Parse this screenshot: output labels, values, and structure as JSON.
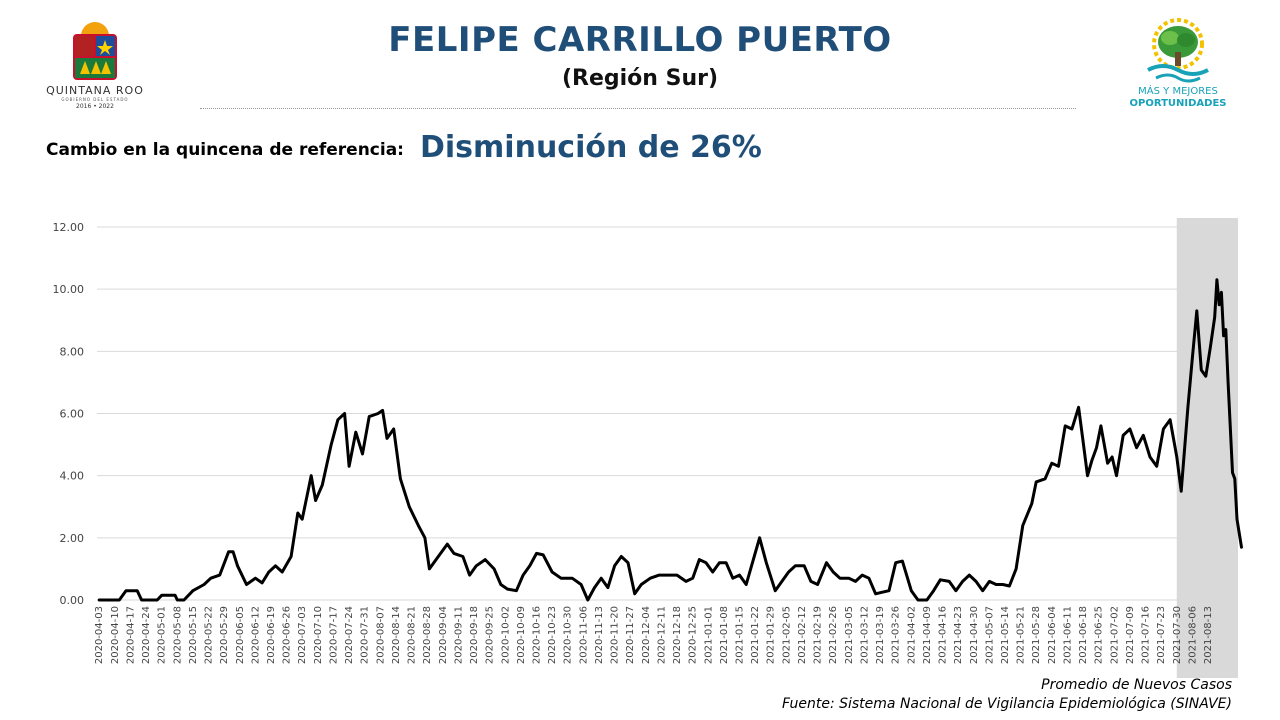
{
  "header": {
    "title": "FELIPE CARRILLO PUERTO",
    "subtitle": "(Región Sur)",
    "change_label": "Cambio en la quincena de referencia:",
    "change_value": "Disminución de 26%"
  },
  "logo_left": {
    "line1": "QUINTANA ROO",
    "line2": "GOBIERNO DEL ESTADO",
    "line3": "2016 • 2022"
  },
  "logo_right": {
    "line1": "MÁS Y MEJORES",
    "line2": "OPORTUNIDADES"
  },
  "footer": {
    "line1": "Promedio de Nuevos Casos",
    "line2": "Fuente: Sistema Nacional de Vigilancia Epidemiológica (SINAVE)"
  },
  "colors": {
    "title": "#1f4e79",
    "line": "#000000",
    "shade": "#d9d9d9",
    "grid": "#d9d9d9"
  },
  "chart_data": {
    "type": "line",
    "start_date": "2020-04-03",
    "ylim": [
      0,
      12
    ],
    "yticks": [
      "0.00",
      "2.00",
      "4.00",
      "6.00",
      "8.00",
      "10.00",
      "12.00"
    ],
    "x_tick_labels": [
      "2020-04-03",
      "2020-04-10",
      "2020-04-17",
      "2020-04-24",
      "2020-05-01",
      "2020-05-08",
      "2020-05-15",
      "2020-05-22",
      "2020-05-29",
      "2020-06-05",
      "2020-06-12",
      "2020-06-19",
      "2020-06-26",
      "2020-07-03",
      "2020-07-10",
      "2020-07-17",
      "2020-07-24",
      "2020-07-31",
      "2020-08-07",
      "2020-08-14",
      "2020-08-21",
      "2020-08-28",
      "2020-09-04",
      "2020-09-11",
      "2020-09-18",
      "2020-09-25",
      "2020-10-02",
      "2020-10-09",
      "2020-10-16",
      "2020-10-23",
      "2020-10-30",
      "2020-11-06",
      "2020-11-13",
      "2020-11-20",
      "2020-11-27",
      "2020-12-04",
      "2020-12-11",
      "2020-12-18",
      "2020-12-25",
      "2021-01-01",
      "2021-01-08",
      "2021-01-15",
      "2021-01-22",
      "2021-01-29",
      "2021-02-05",
      "2021-02-12",
      "2021-02-19",
      "2021-02-26",
      "2021-03-05",
      "2021-03-12",
      "2021-03-19",
      "2021-03-26",
      "2021-04-02",
      "2021-04-09",
      "2021-04-16",
      "2021-04-23",
      "2021-04-30",
      "2021-05-07",
      "2021-05-14",
      "2021-05-21",
      "2021-05-28",
      "2021-06-04",
      "2021-06-11",
      "2021-06-18",
      "2021-06-25",
      "2021-07-02",
      "2021-07-09",
      "2021-07-16",
      "2021-07-23",
      "2021-07-30",
      "2021-08-06",
      "2021-08-13"
    ],
    "shaded_range": [
      "2021-07-30",
      "2021-08-19"
    ],
    "series": [
      {
        "name": "",
        "points": [
          [
            "2020-04-03",
            0
          ],
          [
            "2020-04-12",
            0
          ],
          [
            "2020-04-15",
            0.3
          ],
          [
            "2020-04-20",
            0.3
          ],
          [
            "2020-04-22",
            0
          ],
          [
            "2020-04-29",
            0
          ],
          [
            "2020-05-01",
            0.15
          ],
          [
            "2020-05-07",
            0.15
          ],
          [
            "2020-05-08",
            0
          ],
          [
            "2020-05-11",
            0
          ],
          [
            "2020-05-15",
            0.3
          ],
          [
            "2020-05-20",
            0.5
          ],
          [
            "2020-05-23",
            0.7
          ],
          [
            "2020-05-27",
            0.8
          ],
          [
            "2020-05-31",
            1.55
          ],
          [
            "2020-06-02",
            1.55
          ],
          [
            "2020-06-04",
            1.1
          ],
          [
            "2020-06-08",
            0.5
          ],
          [
            "2020-06-12",
            0.7
          ],
          [
            "2020-06-15",
            0.55
          ],
          [
            "2020-06-18",
            0.9
          ],
          [
            "2020-06-21",
            1.1
          ],
          [
            "2020-06-24",
            0.9
          ],
          [
            "2020-06-28",
            1.4
          ],
          [
            "2020-07-01",
            2.8
          ],
          [
            "2020-07-03",
            2.6
          ],
          [
            "2020-07-07",
            4.0
          ],
          [
            "2020-07-09",
            3.2
          ],
          [
            "2020-07-12",
            3.7
          ],
          [
            "2020-07-16",
            5.0
          ],
          [
            "2020-07-19",
            5.8
          ],
          [
            "2020-07-22",
            6.0
          ],
          [
            "2020-07-24",
            4.3
          ],
          [
            "2020-07-27",
            5.4
          ],
          [
            "2020-07-30",
            4.7
          ],
          [
            "2020-08-02",
            5.9
          ],
          [
            "2020-08-06",
            6.0
          ],
          [
            "2020-08-08",
            6.1
          ],
          [
            "2020-08-10",
            5.2
          ],
          [
            "2020-08-13",
            5.5
          ],
          [
            "2020-08-16",
            3.9
          ],
          [
            "2020-08-20",
            3.0
          ],
          [
            "2020-08-24",
            2.4
          ],
          [
            "2020-08-27",
            2.0
          ],
          [
            "2020-08-29",
            1.0
          ],
          [
            "2020-09-02",
            1.4
          ],
          [
            "2020-09-06",
            1.8
          ],
          [
            "2020-09-09",
            1.5
          ],
          [
            "2020-09-13",
            1.4
          ],
          [
            "2020-09-16",
            0.8
          ],
          [
            "2020-09-19",
            1.1
          ],
          [
            "2020-09-23",
            1.3
          ],
          [
            "2020-09-27",
            1.0
          ],
          [
            "2020-09-30",
            0.5
          ],
          [
            "2020-10-03",
            0.35
          ],
          [
            "2020-10-07",
            0.3
          ],
          [
            "2020-10-10",
            0.8
          ],
          [
            "2020-10-13",
            1.1
          ],
          [
            "2020-10-16",
            1.5
          ],
          [
            "2020-10-19",
            1.45
          ],
          [
            "2020-10-23",
            0.9
          ],
          [
            "2020-10-27",
            0.7
          ],
          [
            "2020-11-01",
            0.7
          ],
          [
            "2020-11-05",
            0.5
          ],
          [
            "2020-11-08",
            0
          ],
          [
            "2020-11-11",
            0.4
          ],
          [
            "2020-11-14",
            0.7
          ],
          [
            "2020-11-17",
            0.4
          ],
          [
            "2020-11-20",
            1.1
          ],
          [
            "2020-11-23",
            1.4
          ],
          [
            "2020-11-26",
            1.2
          ],
          [
            "2020-11-29",
            0.2
          ],
          [
            "2020-12-02",
            0.5
          ],
          [
            "2020-12-06",
            0.7
          ],
          [
            "2020-12-10",
            0.8
          ],
          [
            "2020-12-14",
            0.8
          ],
          [
            "2020-12-18",
            0.8
          ],
          [
            "2020-12-22",
            0.6
          ],
          [
            "2020-12-25",
            0.7
          ],
          [
            "2020-12-28",
            1.3
          ],
          [
            "2020-12-31",
            1.2
          ],
          [
            "2021-01-03",
            0.9
          ],
          [
            "2021-01-06",
            1.2
          ],
          [
            "2021-01-09",
            1.2
          ],
          [
            "2021-01-12",
            0.7
          ],
          [
            "2021-01-15",
            0.8
          ],
          [
            "2021-01-18",
            0.5
          ],
          [
            "2021-01-22",
            1.5
          ],
          [
            "2021-01-24",
            2.0
          ],
          [
            "2021-01-27",
            1.2
          ],
          [
            "2021-01-31",
            0.3
          ],
          [
            "2021-02-03",
            0.6
          ],
          [
            "2021-02-06",
            0.9
          ],
          [
            "2021-02-09",
            1.1
          ],
          [
            "2021-02-13",
            1.1
          ],
          [
            "2021-02-16",
            0.6
          ],
          [
            "2021-02-19",
            0.5
          ],
          [
            "2021-02-23",
            1.2
          ],
          [
            "2021-02-26",
            0.9
          ],
          [
            "2021-03-01",
            0.7
          ],
          [
            "2021-03-05",
            0.7
          ],
          [
            "2021-03-08",
            0.6
          ],
          [
            "2021-03-11",
            0.8
          ],
          [
            "2021-03-14",
            0.7
          ],
          [
            "2021-03-17",
            0.2
          ],
          [
            "2021-03-20",
            0.25
          ],
          [
            "2021-03-23",
            0.3
          ],
          [
            "2021-03-26",
            1.2
          ],
          [
            "2021-03-29",
            1.25
          ],
          [
            "2021-04-02",
            0.3
          ],
          [
            "2021-04-05",
            0
          ],
          [
            "2021-04-09",
            0
          ],
          [
            "2021-04-12",
            0.3
          ],
          [
            "2021-04-15",
            0.65
          ],
          [
            "2021-04-19",
            0.6
          ],
          [
            "2021-04-22",
            0.3
          ],
          [
            "2021-04-25",
            0.6
          ],
          [
            "2021-04-28",
            0.8
          ],
          [
            "2021-05-01",
            0.6
          ],
          [
            "2021-05-04",
            0.3
          ],
          [
            "2021-05-07",
            0.6
          ],
          [
            "2021-05-10",
            0.5
          ],
          [
            "2021-05-13",
            0.5
          ],
          [
            "2021-05-16",
            0.45
          ],
          [
            "2021-05-19",
            1.0
          ],
          [
            "2021-05-22",
            2.4
          ],
          [
            "2021-05-26",
            3.1
          ],
          [
            "2021-05-28",
            3.8
          ],
          [
            "2021-06-01",
            3.9
          ],
          [
            "2021-06-04",
            4.4
          ],
          [
            "2021-06-07",
            4.3
          ],
          [
            "2021-06-10",
            5.6
          ],
          [
            "2021-06-13",
            5.5
          ],
          [
            "2021-06-16",
            6.2
          ],
          [
            "2021-06-18",
            5.1
          ],
          [
            "2021-06-20",
            4.0
          ],
          [
            "2021-06-22",
            4.5
          ],
          [
            "2021-06-24",
            4.9
          ],
          [
            "2021-06-26",
            5.6
          ],
          [
            "2021-06-29",
            4.4
          ],
          [
            "2021-07-01",
            4.6
          ],
          [
            "2021-07-03",
            4.0
          ],
          [
            "2021-07-06",
            5.3
          ],
          [
            "2021-07-09",
            5.5
          ],
          [
            "2021-07-12",
            4.9
          ],
          [
            "2021-07-15",
            5.3
          ],
          [
            "2021-07-18",
            4.6
          ],
          [
            "2021-07-21",
            4.3
          ],
          [
            "2021-07-24",
            5.5
          ],
          [
            "2021-07-27",
            5.8
          ],
          [
            "2021-07-30",
            4.6
          ],
          [
            "2021-08-01",
            3.5
          ],
          [
            "2021-08-04",
            6.2
          ],
          [
            "2021-08-06",
            7.8
          ],
          [
            "2021-08-08",
            9.3
          ],
          [
            "2021-08-10",
            7.4
          ],
          [
            "2021-08-12",
            7.2
          ],
          [
            "2021-08-14",
            8.1
          ],
          [
            "2021-08-16",
            9.1
          ],
          [
            "2021-08-17",
            10.3
          ],
          [
            "2021-08-18",
            9.5
          ],
          [
            "2021-08-19",
            9.9
          ],
          [
            "2021-08-20",
            8.5
          ],
          [
            "2021-08-21",
            8.7
          ],
          [
            "2021-08-22",
            7.0
          ],
          [
            "2021-08-24",
            4.1
          ],
          [
            "2021-08-25",
            3.9
          ],
          [
            "2021-08-26",
            2.6
          ],
          [
            "2021-08-28",
            1.7
          ]
        ]
      }
    ]
  }
}
